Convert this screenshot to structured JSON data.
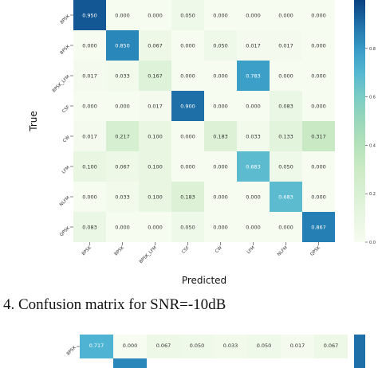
{
  "chart_data": [
    {
      "type": "heatmap",
      "title": "",
      "xlabel": "Predicted",
      "ylabel": "True",
      "x_categories": [
        "8PSK",
        "BPSK",
        "BPSK_LFM",
        "CSF",
        "CW",
        "LFM",
        "NLFM",
        "QPSK"
      ],
      "y_categories": [
        "8PSK",
        "BPSK",
        "BPSK_LFM",
        "CSF",
        "CW",
        "LFM",
        "NLFM",
        "QPSK"
      ],
      "values": [
        [
          0.95,
          0.0,
          0.0,
          0.05,
          0.0,
          0.0,
          0.0,
          0.0
        ],
        [
          0.0,
          0.85,
          0.067,
          0.0,
          0.05,
          0.017,
          0.017,
          0.0
        ],
        [
          0.017,
          0.033,
          0.167,
          0.0,
          0.0,
          0.783,
          0.0,
          0.0
        ],
        [
          0.0,
          0.0,
          0.017,
          0.9,
          0.0,
          0.0,
          0.083,
          0.0
        ],
        [
          0.017,
          0.217,
          0.1,
          0.0,
          0.183,
          0.033,
          0.133,
          0.317
        ],
        [
          0.1,
          0.067,
          0.1,
          0.0,
          0.0,
          0.683,
          0.05,
          0.0
        ],
        [
          0.0,
          0.033,
          0.1,
          0.183,
          0.0,
          0.0,
          0.683,
          0.0
        ],
        [
          0.083,
          0.0,
          0.0,
          0.05,
          0.0,
          0.0,
          0.0,
          0.867
        ]
      ],
      "value_format": "3 decimals",
      "colorbar_ticks": [
        "0.0",
        "0.2",
        "0.4",
        "0.6",
        "0.8"
      ],
      "colorbar_range": [
        0,
        1
      ],
      "color_low": "#f7fcf0",
      "color_high": "#084081"
    },
    {
      "type": "heatmap",
      "partial": true,
      "y_categories": [
        "8PSK"
      ],
      "values": [
        [
          0.717,
          0.0,
          0.067,
          0.05,
          0.033,
          0.05,
          0.017,
          0.067
        ]
      ],
      "value_format": "3 decimals",
      "color_low": "#f7fcf0",
      "color_high": "#084081"
    }
  ],
  "caption": "4. Confusion matrix for SNR=-10dB"
}
